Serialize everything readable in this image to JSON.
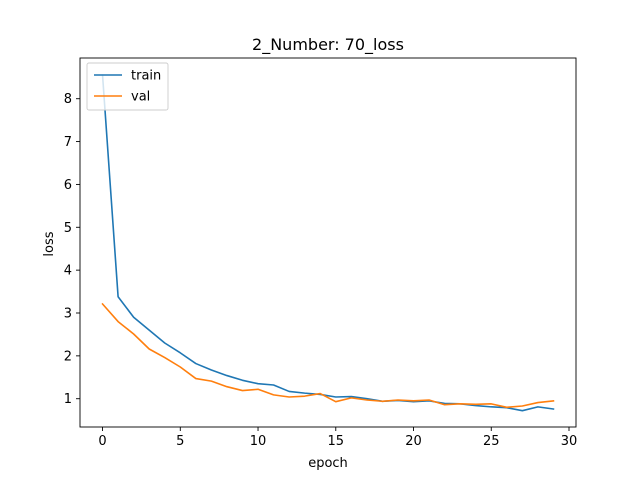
{
  "chart_data": {
    "type": "line",
    "title": "2_Number: 70_loss",
    "xlabel": "epoch",
    "ylabel": "loss",
    "xlim": [
      -1.45,
      30.45
    ],
    "ylim": [
      0.34,
      8.95
    ],
    "xticks": [
      0,
      5,
      10,
      15,
      20,
      25,
      30
    ],
    "yticks": [
      1,
      2,
      3,
      4,
      5,
      6,
      7,
      8
    ],
    "grid": false,
    "legend_position": "top-left",
    "x": [
      0,
      1,
      2,
      3,
      4,
      5,
      6,
      7,
      8,
      9,
      10,
      11,
      12,
      13,
      14,
      15,
      16,
      17,
      18,
      19,
      20,
      21,
      22,
      23,
      24,
      25,
      26,
      27,
      28,
      29
    ],
    "series": [
      {
        "name": "train",
        "color": "#1f77b4",
        "values": [
          8.55,
          3.38,
          2.9,
          2.6,
          2.3,
          2.07,
          1.82,
          1.67,
          1.54,
          1.43,
          1.35,
          1.32,
          1.17,
          1.13,
          1.1,
          1.04,
          1.05,
          1.0,
          0.94,
          0.96,
          0.93,
          0.95,
          0.89,
          0.88,
          0.84,
          0.81,
          0.79,
          0.72,
          0.81,
          0.76
        ]
      },
      {
        "name": "val",
        "color": "#ff7f0e",
        "values": [
          3.21,
          2.8,
          2.51,
          2.16,
          1.96,
          1.74,
          1.47,
          1.41,
          1.28,
          1.19,
          1.22,
          1.09,
          1.04,
          1.06,
          1.12,
          0.93,
          1.02,
          0.97,
          0.94,
          0.97,
          0.95,
          0.97,
          0.86,
          0.88,
          0.87,
          0.88,
          0.8,
          0.83,
          0.91,
          0.95
        ]
      }
    ]
  }
}
